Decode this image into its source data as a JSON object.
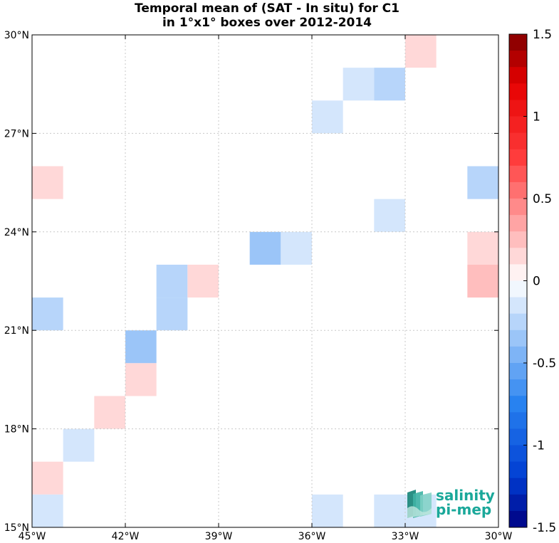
{
  "chart_data": {
    "type": "heatmap",
    "title_line1": "Temporal mean of (SAT - In situ) for C1",
    "title_line2": "in 1°x1° boxes over 2012-2014",
    "xlim": [
      -45,
      -30
    ],
    "ylim": [
      15,
      30
    ],
    "grid": true,
    "x_ticks": [
      {
        "value": -45,
        "label": "45°W"
      },
      {
        "value": -42,
        "label": "42°W"
      },
      {
        "value": -39,
        "label": "39°W"
      },
      {
        "value": -36,
        "label": "36°W"
      },
      {
        "value": -33,
        "label": "33°W"
      },
      {
        "value": -30,
        "label": "30°W"
      }
    ],
    "y_ticks": [
      {
        "value": 15,
        "label": "15°N"
      },
      {
        "value": 18,
        "label": "18°N"
      },
      {
        "value": 21,
        "label": "21°N"
      },
      {
        "value": 24,
        "label": "24°N"
      },
      {
        "value": 27,
        "label": "27°N"
      },
      {
        "value": 30,
        "label": "30°N"
      }
    ],
    "colorbar": {
      "range": [
        -1.5,
        1.5
      ],
      "levels": 30,
      "tick_labels": [
        "1.5",
        "1",
        "0.5",
        "0",
        "-0.5",
        "-1",
        "-1.5"
      ],
      "tick_values": [
        1.5,
        1,
        0.5,
        0,
        -0.5,
        -1,
        -1.5
      ]
    },
    "cells": [
      {
        "lon": -33,
        "lat": 29,
        "value": 0.15
      },
      {
        "lon": -35,
        "lat": 28,
        "value": -0.15
      },
      {
        "lon": -34,
        "lat": 28,
        "value": -0.25
      },
      {
        "lon": -36,
        "lat": 27,
        "value": -0.15
      },
      {
        "lon": -45,
        "lat": 25,
        "value": 0.15
      },
      {
        "lon": -31,
        "lat": 25,
        "value": -0.25
      },
      {
        "lon": -34,
        "lat": 24,
        "value": -0.15
      },
      {
        "lon": -38,
        "lat": 23,
        "value": -0.35
      },
      {
        "lon": -37,
        "lat": 23,
        "value": -0.15
      },
      {
        "lon": -31,
        "lat": 23,
        "value": 0.15
      },
      {
        "lon": -41,
        "lat": 22,
        "value": -0.25
      },
      {
        "lon": -40,
        "lat": 22,
        "value": 0.15
      },
      {
        "lon": -31,
        "lat": 22,
        "value": 0.25
      },
      {
        "lon": -45,
        "lat": 21,
        "value": -0.25
      },
      {
        "lon": -41,
        "lat": 21,
        "value": -0.25
      },
      {
        "lon": -42,
        "lat": 20,
        "value": -0.35
      },
      {
        "lon": -42,
        "lat": 19,
        "value": 0.15
      },
      {
        "lon": -43,
        "lat": 18,
        "value": 0.15
      },
      {
        "lon": -44,
        "lat": 17,
        "value": -0.15
      },
      {
        "lon": -45,
        "lat": 16,
        "value": 0.15
      },
      {
        "lon": -45,
        "lat": 15,
        "value": -0.15
      },
      {
        "lon": -36,
        "lat": 15,
        "value": -0.15
      },
      {
        "lon": -34,
        "lat": 15,
        "value": -0.15
      },
      {
        "lon": -33,
        "lat": 15,
        "value": -0.15
      }
    ]
  },
  "logo": {
    "line1": "salinity",
    "line2": "pi-mep"
  },
  "colors": {
    "positive_light": "#fddcdc",
    "positive_mid": "#fbb8b8",
    "negative_light": "#dbe9fb",
    "negative_mid": "#bcd8f7",
    "negative_strong": "#94c4f7",
    "logo_teal": "#1aa89a"
  }
}
